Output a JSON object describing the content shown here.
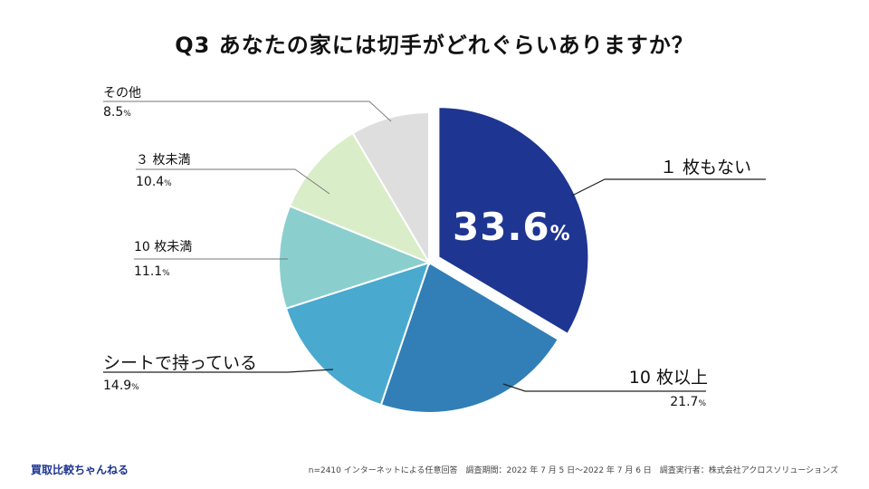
{
  "chart_data": {
    "type": "pie",
    "title": "Q3 あなたの家には切手がどれぐらいありますか？",
    "unit": "%",
    "slices": [
      {
        "label": "１ 枚もない",
        "value": 33.6,
        "color": "#1e3591"
      },
      {
        "label": "10 枚以上",
        "value": 21.7,
        "color": "#317fb6"
      },
      {
        "label": "シートで持っている",
        "value": 14.9,
        "color": "#49a9cf"
      },
      {
        "label": "10 枚未満",
        "value": 11.1,
        "color": "#8acfcd"
      },
      {
        "label": "３ 枚未満",
        "value": 10.4,
        "color": "#d9eec8"
      },
      {
        "label": "その他",
        "value": 8.5,
        "color": "#dedede"
      }
    ],
    "value_labels": [
      "33.6",
      "21.7",
      "14.9",
      "11.1",
      "10.4",
      "8.5"
    ]
  },
  "footer": {
    "brand": "買取比較ちゃんねる",
    "note": "n=2410 インターネットによる任意回答　調査期間：2022 年 7 月 5 日〜2022 年 7 月 6 日　調査実行者：株式会社アクロスソリューションズ"
  }
}
